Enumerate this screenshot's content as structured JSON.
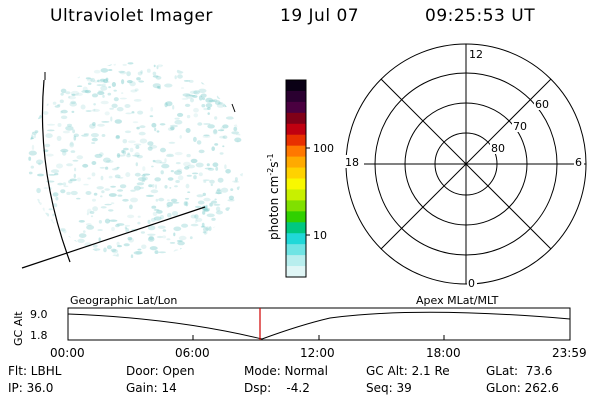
{
  "header": {
    "title": "Ultraviolet Imager",
    "date": "19 Jul 07",
    "time": "09:25:53 UT"
  },
  "colorbar": {
    "label": "photon cm",
    "label_sup1": "-2",
    "label_mid": "s",
    "label_sup2": "-1",
    "ticks": [
      "100",
      "10"
    ],
    "colors": [
      "#0a0015",
      "#2a0030",
      "#4a0040",
      "#800018",
      "#c00010",
      "#e83000",
      "#ff7800",
      "#ffaa00",
      "#ffd200",
      "#f8f800",
      "#c8f000",
      "#80e000",
      "#30d000",
      "#00c880",
      "#20d8d8",
      "#70e4e4",
      "#b8eeee",
      "#e0f6f6"
    ]
  },
  "polar": {
    "lat_labels": [
      "60",
      "70",
      "80"
    ],
    "mlt_labels": {
      "top": "12",
      "bottom": "0",
      "left": "18",
      "right": "6"
    }
  },
  "altitude_plot": {
    "y_label": "GC Alt",
    "y_ticks": [
      "9.0",
      "1.8"
    ],
    "left_caption": "Geographic Lat/Lon",
    "right_caption": "Apex MLat/MLT",
    "x_ticks": [
      "00:00",
      "06:00",
      "12:00",
      "18:00",
      "23:59"
    ],
    "marker_color": "#d00000"
  },
  "status": {
    "flt": "Flt: LBHL",
    "ip": "IP: 36.0",
    "door": "Door: Open",
    "gain": "Gain: 14",
    "mode": "Mode: Normal",
    "dsp": "Dsp:    -4.2",
    "gcalt": "GC Alt: 2.1 Re",
    "seq": "Seq: 39",
    "glat": "GLat:  73.6",
    "glon": "GLon: 262.6"
  },
  "image_tint": "#80cccc"
}
